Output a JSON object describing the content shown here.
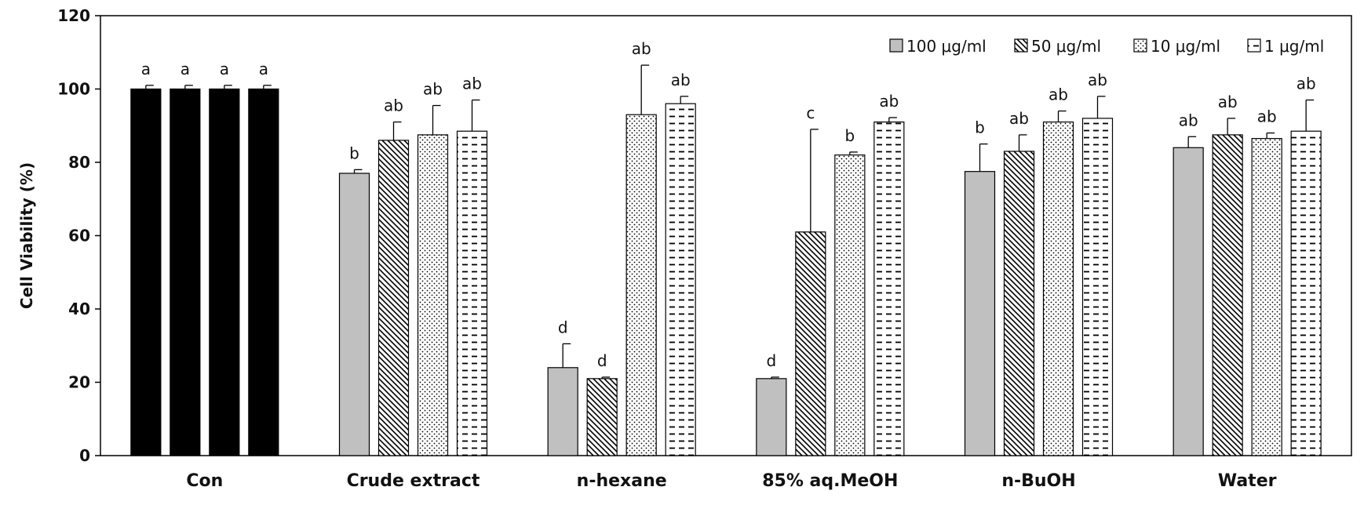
{
  "chart_data": {
    "type": "bar",
    "title": "",
    "xlabel": "",
    "ylabel": "Cell Viability (%)",
    "ylim": [
      0,
      120
    ],
    "yticks": [
      "0",
      "20",
      "40",
      "60",
      "80",
      "100",
      "120"
    ],
    "legend_position": "top-right",
    "categories": [
      "Con",
      "Crude extract",
      "n-hexane",
      "85% aq.MeOH",
      "n-BuOH",
      "Water"
    ],
    "series": [
      {
        "name": "100 μg/ml",
        "pattern": "solid-gray",
        "values": [
          100,
          77,
          24,
          21,
          77.5,
          84
        ],
        "errors": [
          1,
          1,
          6.5,
          0.4,
          7.5,
          3
        ],
        "letters": [
          "a",
          "b",
          "d",
          "d",
          "b",
          "ab"
        ]
      },
      {
        "name": "50 μg/ml",
        "pattern": "diagonal-hatch",
        "values": [
          100,
          86,
          21,
          61,
          83,
          87.5
        ],
        "errors": [
          1,
          5,
          0.4,
          28,
          4.5,
          4.5
        ],
        "letters": [
          "a",
          "ab",
          "d",
          "c",
          "ab",
          "ab"
        ]
      },
      {
        "name": "10 μg/ml",
        "pattern": "dots",
        "values": [
          100,
          87.5,
          93,
          82,
          91,
          86.5
        ],
        "errors": [
          1,
          8,
          13.5,
          0.8,
          3,
          1.5
        ],
        "letters": [
          "a",
          "ab",
          "ab",
          "b",
          "ab",
          "ab"
        ]
      },
      {
        "name": "1 μg/ml",
        "pattern": "dashed-lines",
        "values": [
          100,
          88.5,
          96,
          91,
          92,
          88.5
        ],
        "errors": [
          1,
          8.5,
          2,
          1.2,
          6,
          8.5
        ],
        "letters": [
          "a",
          "ab",
          "ab",
          "ab",
          "ab",
          "ab"
        ]
      }
    ],
    "control_color": "#000000",
    "colors": {
      "bar_fill_gray": "#c0c0c0",
      "bar_stroke": "#000000",
      "axis": "#000000"
    }
  }
}
